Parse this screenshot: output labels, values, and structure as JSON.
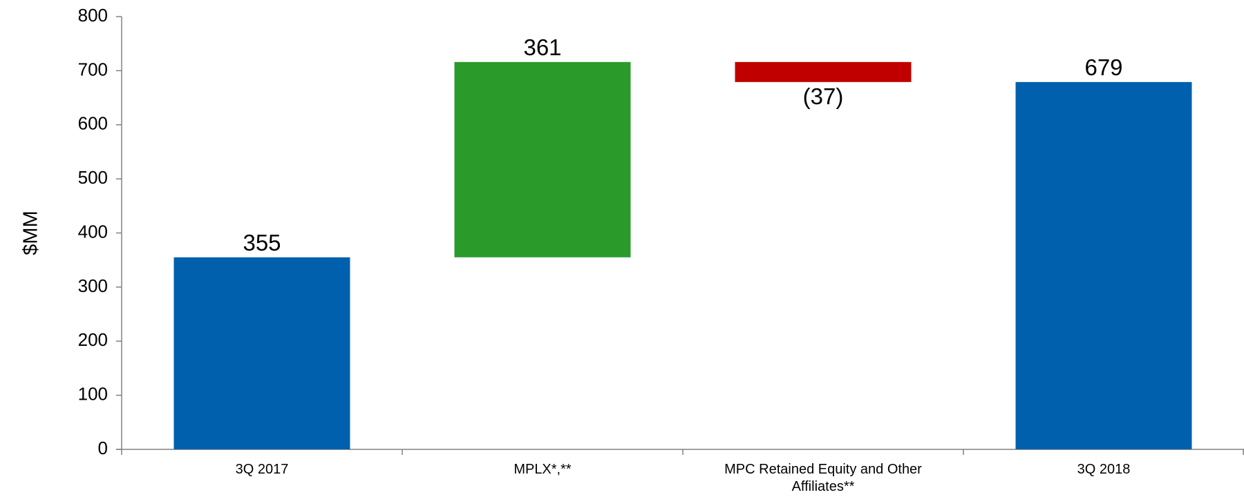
{
  "chart_data": {
    "type": "bar",
    "subtype": "waterfall",
    "title": "",
    "xlabel": "",
    "ylabel": "$MM",
    "ylim": [
      0,
      800
    ],
    "yticks": [
      0,
      100,
      200,
      300,
      400,
      500,
      600,
      700,
      800
    ],
    "grid": false,
    "legend": "none",
    "categories": [
      {
        "lines": [
          "3Q 2017"
        ]
      },
      {
        "lines": [
          "MPLX*,**"
        ]
      },
      {
        "lines": [
          "MPC Retained Equity and Other",
          "Affiliates**"
        ]
      },
      {
        "lines": [
          "3Q 2018"
        ]
      }
    ],
    "bars": [
      {
        "category": "3Q 2017",
        "kind": "total",
        "base": 0,
        "value": 355,
        "label": "355",
        "color": "#0060ad"
      },
      {
        "category": "MPLX*,**",
        "kind": "increase",
        "base": 355,
        "value": 361,
        "label": "361",
        "color": "#2a9a2b"
      },
      {
        "category": "MPC Retained Equity and Other Affiliates**",
        "kind": "decrease",
        "base": 716,
        "value": -37,
        "label": "(37)",
        "color": "#c00000"
      },
      {
        "category": "3Q 2018",
        "kind": "total",
        "base": 0,
        "value": 679,
        "label": "679",
        "color": "#0060ad"
      }
    ]
  }
}
